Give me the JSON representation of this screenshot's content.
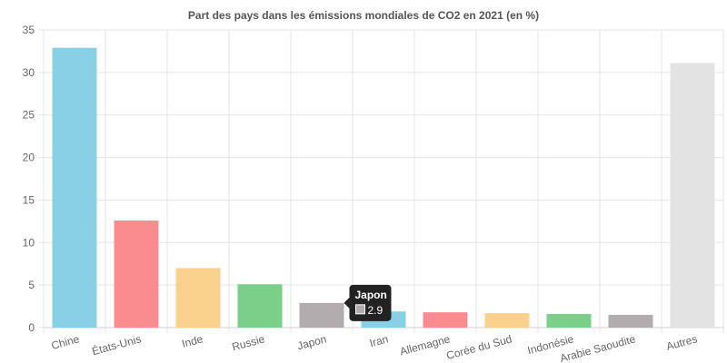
{
  "chart_data": {
    "type": "bar",
    "title": "Part des pays dans les émissions mondiales de CO2 en 2021 (en %)",
    "xlabel": "",
    "ylabel": "",
    "ylim": [
      0,
      35
    ],
    "yticks": [
      0,
      5,
      10,
      15,
      20,
      25,
      30,
      35
    ],
    "categories": [
      "Chine",
      "États-Unis",
      "Inde",
      "Russie",
      "Japon",
      "Iran",
      "Allemagne",
      "Corée du Sud",
      "Indonésie",
      "Arabie Saoudite",
      "Autres"
    ],
    "values": [
      32.9,
      12.6,
      7.0,
      5.1,
      2.9,
      1.9,
      1.8,
      1.7,
      1.6,
      1.5,
      31.1
    ],
    "colors": [
      "#87d0e6",
      "#fa8c8f",
      "#f9d18c",
      "#7ccf88",
      "#b2acae",
      "#87d0e6",
      "#fa8c8f",
      "#f9d18c",
      "#7ccf88",
      "#b2acae",
      "#e3e3e3"
    ],
    "grid": true,
    "legend": "none",
    "tooltip": {
      "category": "Japon",
      "value": "2.9",
      "swatch_color": "#b2acae"
    }
  }
}
